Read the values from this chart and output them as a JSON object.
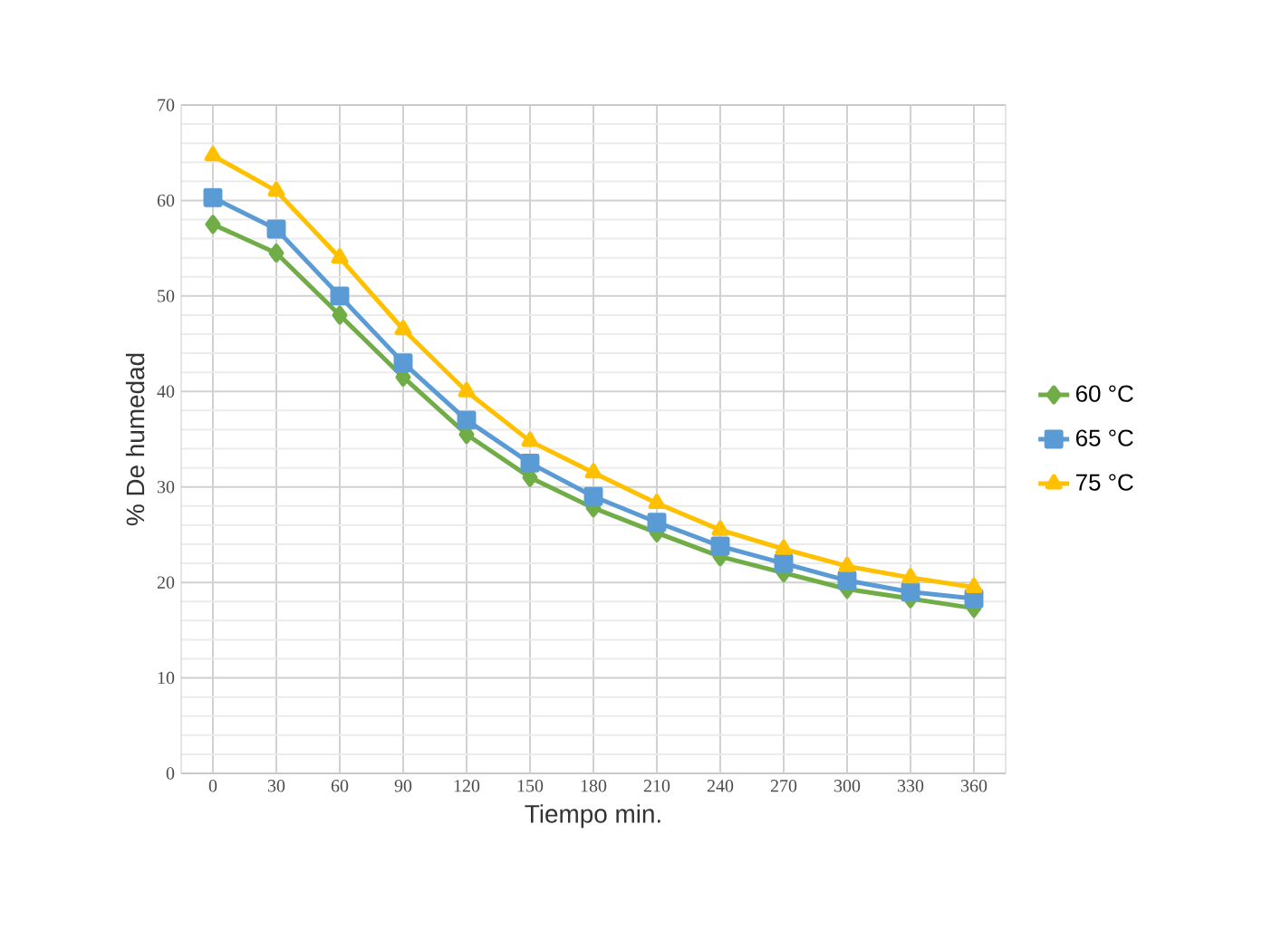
{
  "chart_data": {
    "type": "line",
    "xlabel": "Tiempo min.",
    "ylabel": "%  De humedad",
    "categories": [
      "0",
      "30",
      "60",
      "90",
      "120",
      "150",
      "180",
      "210",
      "240",
      "270",
      "300",
      "330",
      "360"
    ],
    "series": [
      {
        "name": "60 °C",
        "color": "#70ad47",
        "marker": "diamond",
        "values": [
          57.5,
          54.5,
          48,
          41.5,
          35.5,
          31,
          27.8,
          25.2,
          22.7,
          21,
          19.3,
          18.3,
          17.3
        ]
      },
      {
        "name": "65 °C",
        "color": "#5b9bd5",
        "marker": "square",
        "values": [
          60.3,
          57,
          50,
          43,
          37,
          32.5,
          29,
          26.3,
          23.8,
          22,
          20.2,
          19,
          18.3
        ]
      },
      {
        "name": "75 °C",
        "color": "#ffc000",
        "marker": "triangle",
        "values": [
          64.7,
          61,
          54,
          46.5,
          40,
          34.8,
          31.5,
          28.3,
          25.5,
          23.5,
          21.7,
          20.5,
          19.5
        ]
      }
    ],
    "ylim": [
      0,
      70
    ],
    "yticks": [
      0,
      10,
      20,
      30,
      40,
      50,
      60,
      70
    ],
    "grid": true,
    "legend": "right",
    "line_style": "solid"
  }
}
